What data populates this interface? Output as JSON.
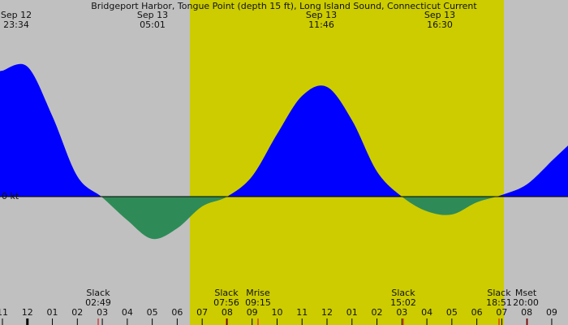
{
  "chart_data": {
    "type": "area",
    "title": "Bridgeport Harbor, Tongue Point (depth 15 ft), Long Island Sound, Connecticut Current",
    "x": [
      "11",
      "12",
      "01",
      "02",
      "03",
      "04",
      "05",
      "06",
      "07",
      "08",
      "09",
      "10",
      "11",
      "12",
      "01",
      "02",
      "03",
      "04",
      "05",
      "06",
      "07",
      "08",
      "09"
    ],
    "values": [
      1.55,
      1.6,
      0.99,
      0.25,
      -0.01,
      -0.29,
      -0.52,
      -0.39,
      -0.12,
      0.0,
      0.25,
      0.77,
      1.24,
      1.35,
      0.94,
      0.31,
      0.0,
      -0.18,
      -0.22,
      -0.07,
      0.02,
      0.15,
      0.44
    ],
    "color": "#0000ff",
    "negative_color": "#2e8b57",
    "ylim": [
      -1.58,
      2.42
    ],
    "yticks": [
      {
        "value": 0,
        "label": "0 kt"
      }
    ],
    "extremes": [
      {
        "date": "Sep 12",
        "time": "23:34"
      },
      {
        "date": "Sep 13",
        "time": "05:01"
      },
      {
        "date": "Sep 13",
        "time": "11:46"
      },
      {
        "date": "Sep 13",
        "time": "16:30"
      }
    ],
    "events": [
      {
        "label": "Slack",
        "time": "02:49"
      },
      {
        "label": "Slack",
        "time": "07:56"
      },
      {
        "label": "Mrise",
        "time": "09:15"
      },
      {
        "label": "Slack",
        "time": "15:02"
      },
      {
        "label": "Slack",
        "time": "18:51"
      },
      {
        "label": "Mset",
        "time": "20:00"
      }
    ]
  }
}
